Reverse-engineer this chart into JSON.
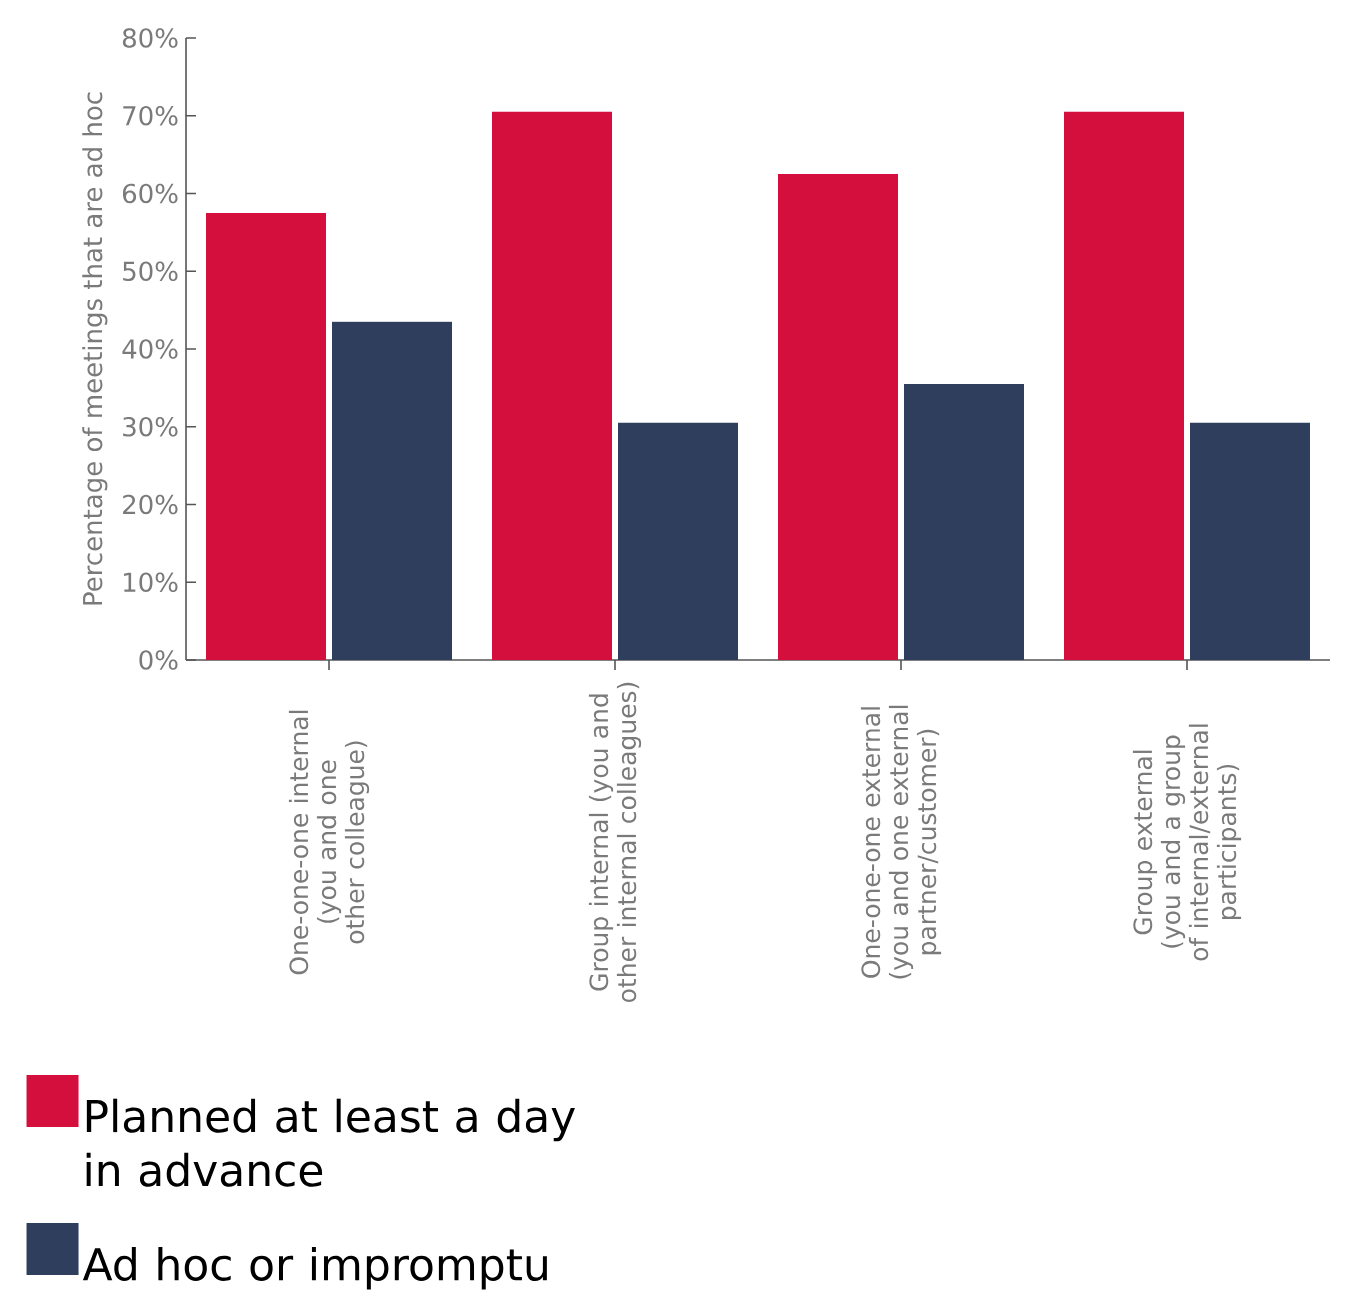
{
  "chart_data": {
    "type": "bar",
    "ylabel": "Percentage of meetings that are ad hoc",
    "categories": [
      "One-one-one internal (you and one other colleague)",
      "Group internal (you and other internal colleagues)",
      "One-one-one external (you and one external partner/customer)",
      "Group external (you and a group of internal/external participants)"
    ],
    "series": [
      {
        "name": "Planned at least a day in advance",
        "color": "#d40f3d",
        "values": [
          57.5,
          70.5,
          62.5,
          70.5
        ]
      },
      {
        "name": "Ad hoc or impromptu",
        "color": "#2f3e5c",
        "values": [
          43.5,
          30.5,
          35.5,
          30.5
        ]
      }
    ],
    "ylim": [
      0,
      80
    ],
    "yticks": [
      {
        "value": 0,
        "label": "0%"
      },
      {
        "value": 10,
        "label": "10%"
      },
      {
        "value": 20,
        "label": "20%"
      },
      {
        "value": 30,
        "label": "30%"
      },
      {
        "value": 40,
        "label": "40%"
      },
      {
        "value": 50,
        "label": "50%"
      },
      {
        "value": 60,
        "label": "60%"
      },
      {
        "value": 70,
        "label": "70%"
      },
      {
        "value": 80,
        "label": "80%"
      }
    ],
    "grid": false,
    "legend": "bottom left"
  }
}
